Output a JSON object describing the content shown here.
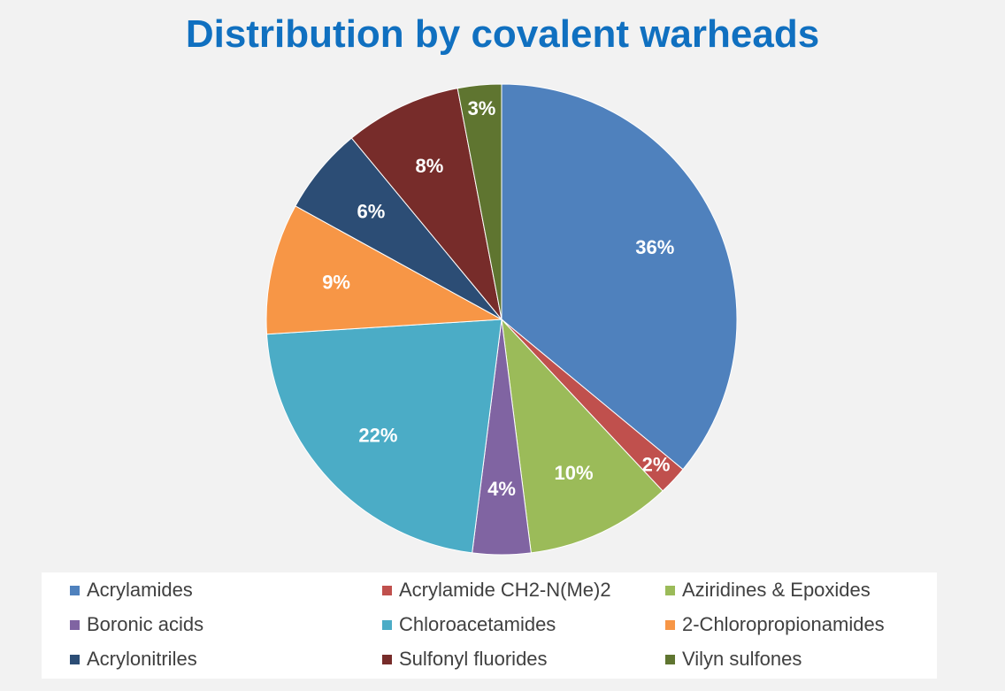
{
  "chart_data": {
    "type": "pie",
    "title": "Distribution by covalent warheads",
    "slices": [
      {
        "label": "Acrylamides",
        "value": 36,
        "display": "36%",
        "color": "#4f81bd"
      },
      {
        "label": "Acrylamide CH2-N(Me)2",
        "value": 2,
        "display": "2%",
        "color": "#c0504d"
      },
      {
        "label": "Aziridines & Epoxides",
        "value": 10,
        "display": "10%",
        "color": "#9bbb59"
      },
      {
        "label": "Boronic acids",
        "value": 4,
        "display": "4%",
        "color": "#8064a2"
      },
      {
        "label": "Chloroacetamides",
        "value": 22,
        "display": "22%",
        "color": "#4bacc6"
      },
      {
        "label": "2-Chloropropionamides",
        "value": 9,
        "display": "9%",
        "color": "#f79646"
      },
      {
        "label": "Acrylonitriles",
        "value": 6,
        "display": "6%",
        "color": "#2c4d75"
      },
      {
        "label": "Sulfonyl fluorides",
        "value": 8,
        "display": "8%",
        "color": "#772c2a"
      },
      {
        "label": "Vilyn sulfones",
        "value": 3,
        "display": "3%",
        "color": "#5f7530"
      }
    ],
    "start_angle": "12 o'clock",
    "direction": "clockwise",
    "legend_position": "bottom",
    "data_labels": "percent"
  },
  "style": {
    "title_color": "#1070c0",
    "background": "#f2f2f2",
    "legend_background": "#ffffff",
    "label_color": "#ffffff",
    "slice_border": "#ffffff"
  }
}
